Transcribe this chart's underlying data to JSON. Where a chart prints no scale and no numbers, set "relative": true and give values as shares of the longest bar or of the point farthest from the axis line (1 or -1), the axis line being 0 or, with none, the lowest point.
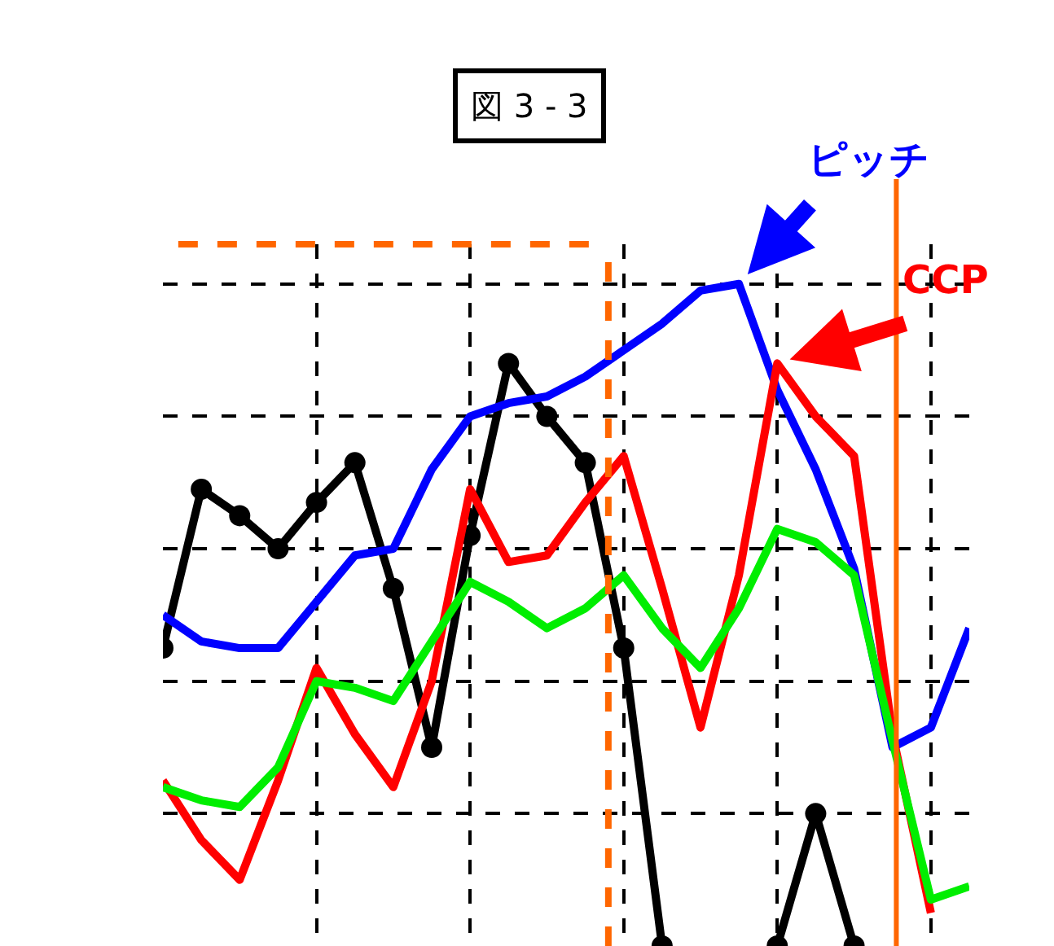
{
  "chart_data": {
    "type": "line",
    "title": "図 3 - 3",
    "relative": true,
    "categories": [
      null,
      null,
      null,
      null,
      null,
      null,
      null,
      null,
      null,
      null,
      null,
      null,
      null,
      null,
      null,
      null,
      null,
      null,
      null,
      null,
      null,
      null
    ],
    "series": [
      {
        "color": "#000000",
        "marker": "circle",
        "values": [
          0.45,
          0.69,
          0.65,
          0.6,
          0.67,
          0.73,
          0.54,
          0.3,
          0.62,
          0.88,
          0.8,
          0.73,
          0.45,
          0,
          null,
          null,
          0,
          0.2,
          0,
          null,
          null,
          null
        ]
      },
      {
        "name": "ピッチ",
        "color": "#0000ff",
        "values": [
          0.5,
          0.46,
          0.45,
          0.45,
          0.52,
          0.59,
          0.6,
          0.72,
          0.8,
          0.82,
          0.83,
          0.86,
          0.9,
          0.94,
          0.99,
          1.0,
          0.84,
          0.72,
          0.57,
          0.3,
          0.33,
          0.48
        ]
      },
      {
        "name": "CCP",
        "color": "#ff0000",
        "values": [
          0.25,
          0.16,
          0.1,
          0.25,
          0.42,
          0.32,
          0.24,
          0.4,
          0.69,
          0.58,
          0.59,
          0.67,
          0.74,
          0.54,
          0.33,
          0.56,
          0.88,
          0.8,
          0.74,
          0.32,
          0.05,
          null
        ]
      },
      {
        "color": "#00ee00",
        "values": [
          0.24,
          0.22,
          0.21,
          0.27,
          0.4,
          0.39,
          0.37,
          0.46,
          0.55,
          0.52,
          0.48,
          0.51,
          0.56,
          0.48,
          0.42,
          0.51,
          0.63,
          0.61,
          0.56,
          0.31,
          0.07,
          0.09
        ]
      }
    ],
    "grid": true,
    "line_style": "solid",
    "legend": false
  }
}
